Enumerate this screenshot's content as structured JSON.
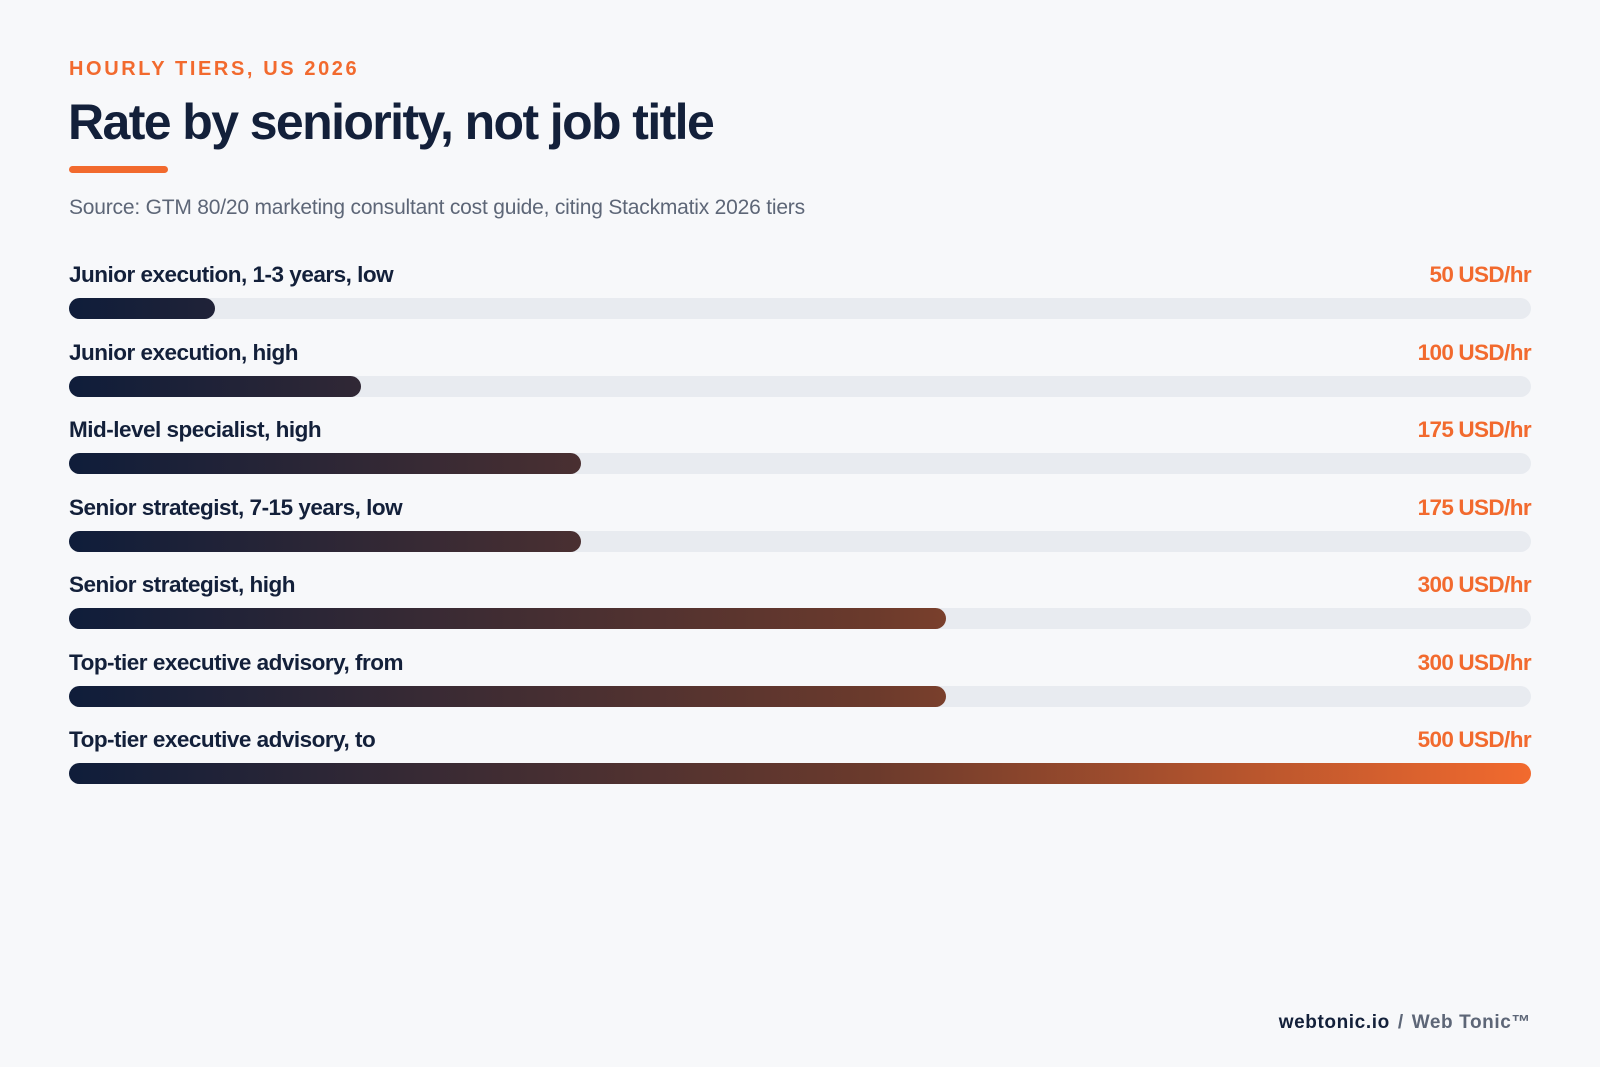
{
  "header": {
    "eyebrow": "HOURLY TIERS, US 2026",
    "title": "Rate by seniority, not job title",
    "source": "Source: GTM 80/20 marketing consultant cost guide, citing Stackmatix 2026 tiers"
  },
  "chart_data": {
    "type": "bar",
    "orientation": "horizontal",
    "unit": "USD/hr",
    "xlim": [
      0,
      500
    ],
    "grid": false,
    "colors": {
      "fill_start": "#0f1d3a",
      "fill_end": "#f26a2e",
      "track": "#e8ebf0",
      "value_text": "#f26a2e"
    },
    "categories": [
      "Junior execution, 1-3 years, low",
      "Junior execution, high",
      "Mid-level specialist, high",
      "Senior strategist, 7-15 years, low",
      "Senior strategist, high",
      "Top-tier executive advisory, from",
      "Top-tier executive advisory, to"
    ],
    "values": [
      50,
      100,
      175,
      175,
      300,
      300,
      500
    ]
  },
  "footer": {
    "domain": "webtonic.io",
    "separator": "/",
    "brand": "Web Tonic™"
  }
}
